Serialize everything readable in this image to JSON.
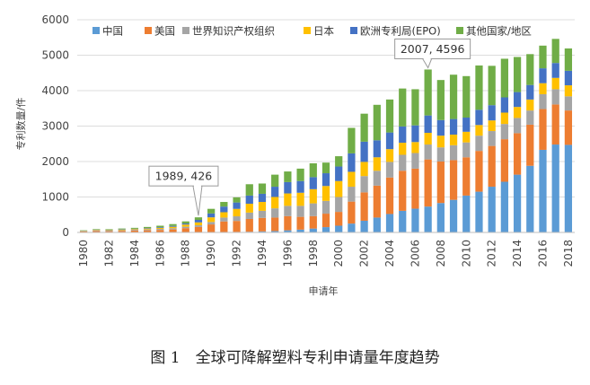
{
  "caption": "图 1　全球可降解塑料专利申请量年度趋势",
  "chart_data": {
    "type": "bar",
    "stacked": true,
    "title": "",
    "xlabel": "申请年",
    "ylabel": "专利数量/件",
    "ylim": [
      0,
      6000
    ],
    "yticks": [
      0,
      1000,
      2000,
      3000,
      4000,
      5000,
      6000
    ],
    "grid": true,
    "legend_position": "top",
    "categories": [
      "1980",
      "1981",
      "1982",
      "1983",
      "1984",
      "1985",
      "1986",
      "1987",
      "1988",
      "1989",
      "1990",
      "1991",
      "1992",
      "1993",
      "1994",
      "1995",
      "1996",
      "1997",
      "1998",
      "1999",
      "2000",
      "2001",
      "2002",
      "2003",
      "2004",
      "2005",
      "2006",
      "2007",
      "2008",
      "2009",
      "2010",
      "2011",
      "2012",
      "2013",
      "2014",
      "2015",
      "2016",
      "2017",
      "2018"
    ],
    "x_tick_labels": [
      "1980",
      "1982",
      "1984",
      "1986",
      "1988",
      "1990",
      "1992",
      "1994",
      "1996",
      "1998",
      "2000",
      "2002",
      "2004",
      "2006",
      "2008",
      "2010",
      "2012",
      "2014",
      "2016",
      "2018"
    ],
    "series": [
      {
        "name": "中国",
        "color": "#5B9BD5",
        "values": [
          0,
          0,
          0,
          0,
          0,
          0,
          0,
          0,
          2,
          4,
          6,
          10,
          15,
          20,
          30,
          40,
          60,
          80,
          110,
          150,
          190,
          250,
          330,
          420,
          520,
          610,
          670,
          730,
          830,
          920,
          1040,
          1150,
          1290,
          1430,
          1630,
          1880,
          2330,
          2480,
          2470
        ]
      },
      {
        "name": "美国",
        "color": "#ED7D31",
        "values": [
          25,
          40,
          35,
          45,
          55,
          60,
          70,
          85,
          120,
          150,
          220,
          300,
          310,
          360,
          380,
          380,
          400,
          360,
          350,
          380,
          390,
          620,
          800,
          900,
          1030,
          1130,
          1130,
          1330,
          1170,
          1120,
          1080,
          1150,
          1150,
          1200,
          1170,
          1160,
          1150,
          1130,
          970
        ]
      },
      {
        "name": "世界知识产权组织",
        "color": "#A5A5A5",
        "values": [
          10,
          15,
          15,
          18,
          20,
          25,
          30,
          35,
          40,
          50,
          70,
          110,
          130,
          180,
          200,
          260,
          290,
          310,
          360,
          360,
          420,
          420,
          460,
          420,
          440,
          450,
          440,
          420,
          400,
          420,
          420,
          430,
          420,
          430,
          430,
          400,
          420,
          430,
          400
        ]
      },
      {
        "name": "日本",
        "color": "#FFC000",
        "values": [
          10,
          15,
          15,
          18,
          20,
          25,
          30,
          40,
          60,
          80,
          130,
          150,
          210,
          250,
          250,
          320,
          350,
          370,
          400,
          420,
          450,
          420,
          400,
          380,
          360,
          340,
          310,
          330,
          330,
          300,
          300,
          300,
          300,
          320,
          310,
          310,
          310,
          320,
          310
        ]
      },
      {
        "name": "欧洲专利局(EPO)",
        "color": "#4472C4",
        "values": [
          5,
          10,
          10,
          10,
          10,
          15,
          20,
          25,
          30,
          70,
          110,
          160,
          180,
          230,
          230,
          290,
          320,
          330,
          340,
          360,
          410,
          520,
          570,
          480,
          470,
          460,
          470,
          490,
          440,
          440,
          400,
          430,
          430,
          430,
          420,
          410,
          420,
          420,
          410
        ]
      },
      {
        "name": "其他国家/地区",
        "color": "#70AD47",
        "values": [
          10,
          15,
          15,
          20,
          25,
          30,
          40,
          50,
          60,
          72,
          130,
          130,
          145,
          320,
          290,
          340,
          300,
          350,
          390,
          300,
          290,
          720,
          790,
          1000,
          930,
          1070,
          1020,
          1296,
          1130,
          1250,
          1170,
          1250,
          1110,
          1090,
          990,
          870,
          640,
          680,
          630
        ]
      }
    ],
    "annotations": [
      {
        "text": "1989, 426",
        "x": "1989",
        "y": 426
      },
      {
        "text": "2007, 4596",
        "x": "2007",
        "y": 4596
      }
    ]
  }
}
